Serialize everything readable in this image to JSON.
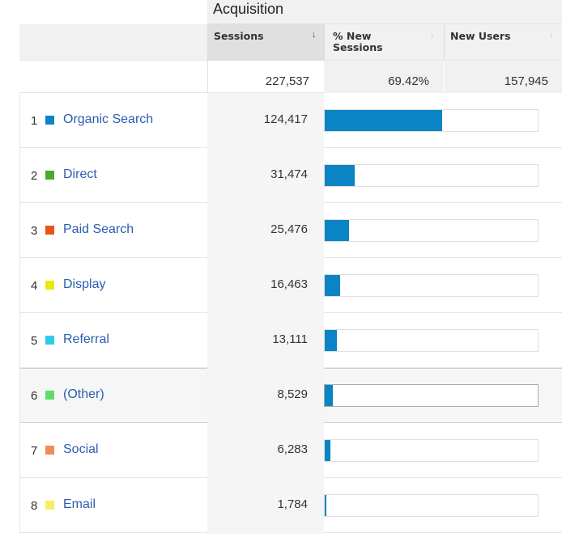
{
  "group": {
    "title": "Acquisition"
  },
  "columns": {
    "sessions": {
      "label": "Sessions",
      "sort": "↓"
    },
    "pct_new": {
      "label_line1": "% New",
      "label_line2": "Sessions",
      "sort": "↓"
    },
    "new_users": {
      "label": "New Users",
      "sort": "↓"
    }
  },
  "totals": {
    "sessions": "227,537",
    "pct_new": "69.42%",
    "new_users": "157,945"
  },
  "colors": {
    "bar": "#0a84c4",
    "link": "#2a5db0"
  },
  "rows": [
    {
      "num": "1",
      "channel": "Organic Search",
      "color": "#0a84c4",
      "sessions": "124,417",
      "share": 0.5468
    },
    {
      "num": "2",
      "channel": "Direct",
      "color": "#4aaa2a",
      "sessions": "31,474",
      "share": 0.1383
    },
    {
      "num": "3",
      "channel": "Paid Search",
      "color": "#e8541e",
      "sessions": "25,476",
      "share": 0.112
    },
    {
      "num": "4",
      "channel": "Display",
      "color": "#e8ea0a",
      "sessions": "16,463",
      "share": 0.0724
    },
    {
      "num": "5",
      "channel": "Referral",
      "color": "#2ecbe8",
      "sessions": "13,111",
      "share": 0.0576
    },
    {
      "num": "6",
      "channel": "(Other)",
      "color": "#5fdc6a",
      "sessions": "8,529",
      "share": 0.0375
    },
    {
      "num": "7",
      "channel": "Social",
      "color": "#f08c5a",
      "sessions": "6,283",
      "share": 0.0276
    },
    {
      "num": "8",
      "channel": "Email",
      "color": "#f7ef60",
      "sessions": "1,784",
      "share": 0.0078
    }
  ]
}
